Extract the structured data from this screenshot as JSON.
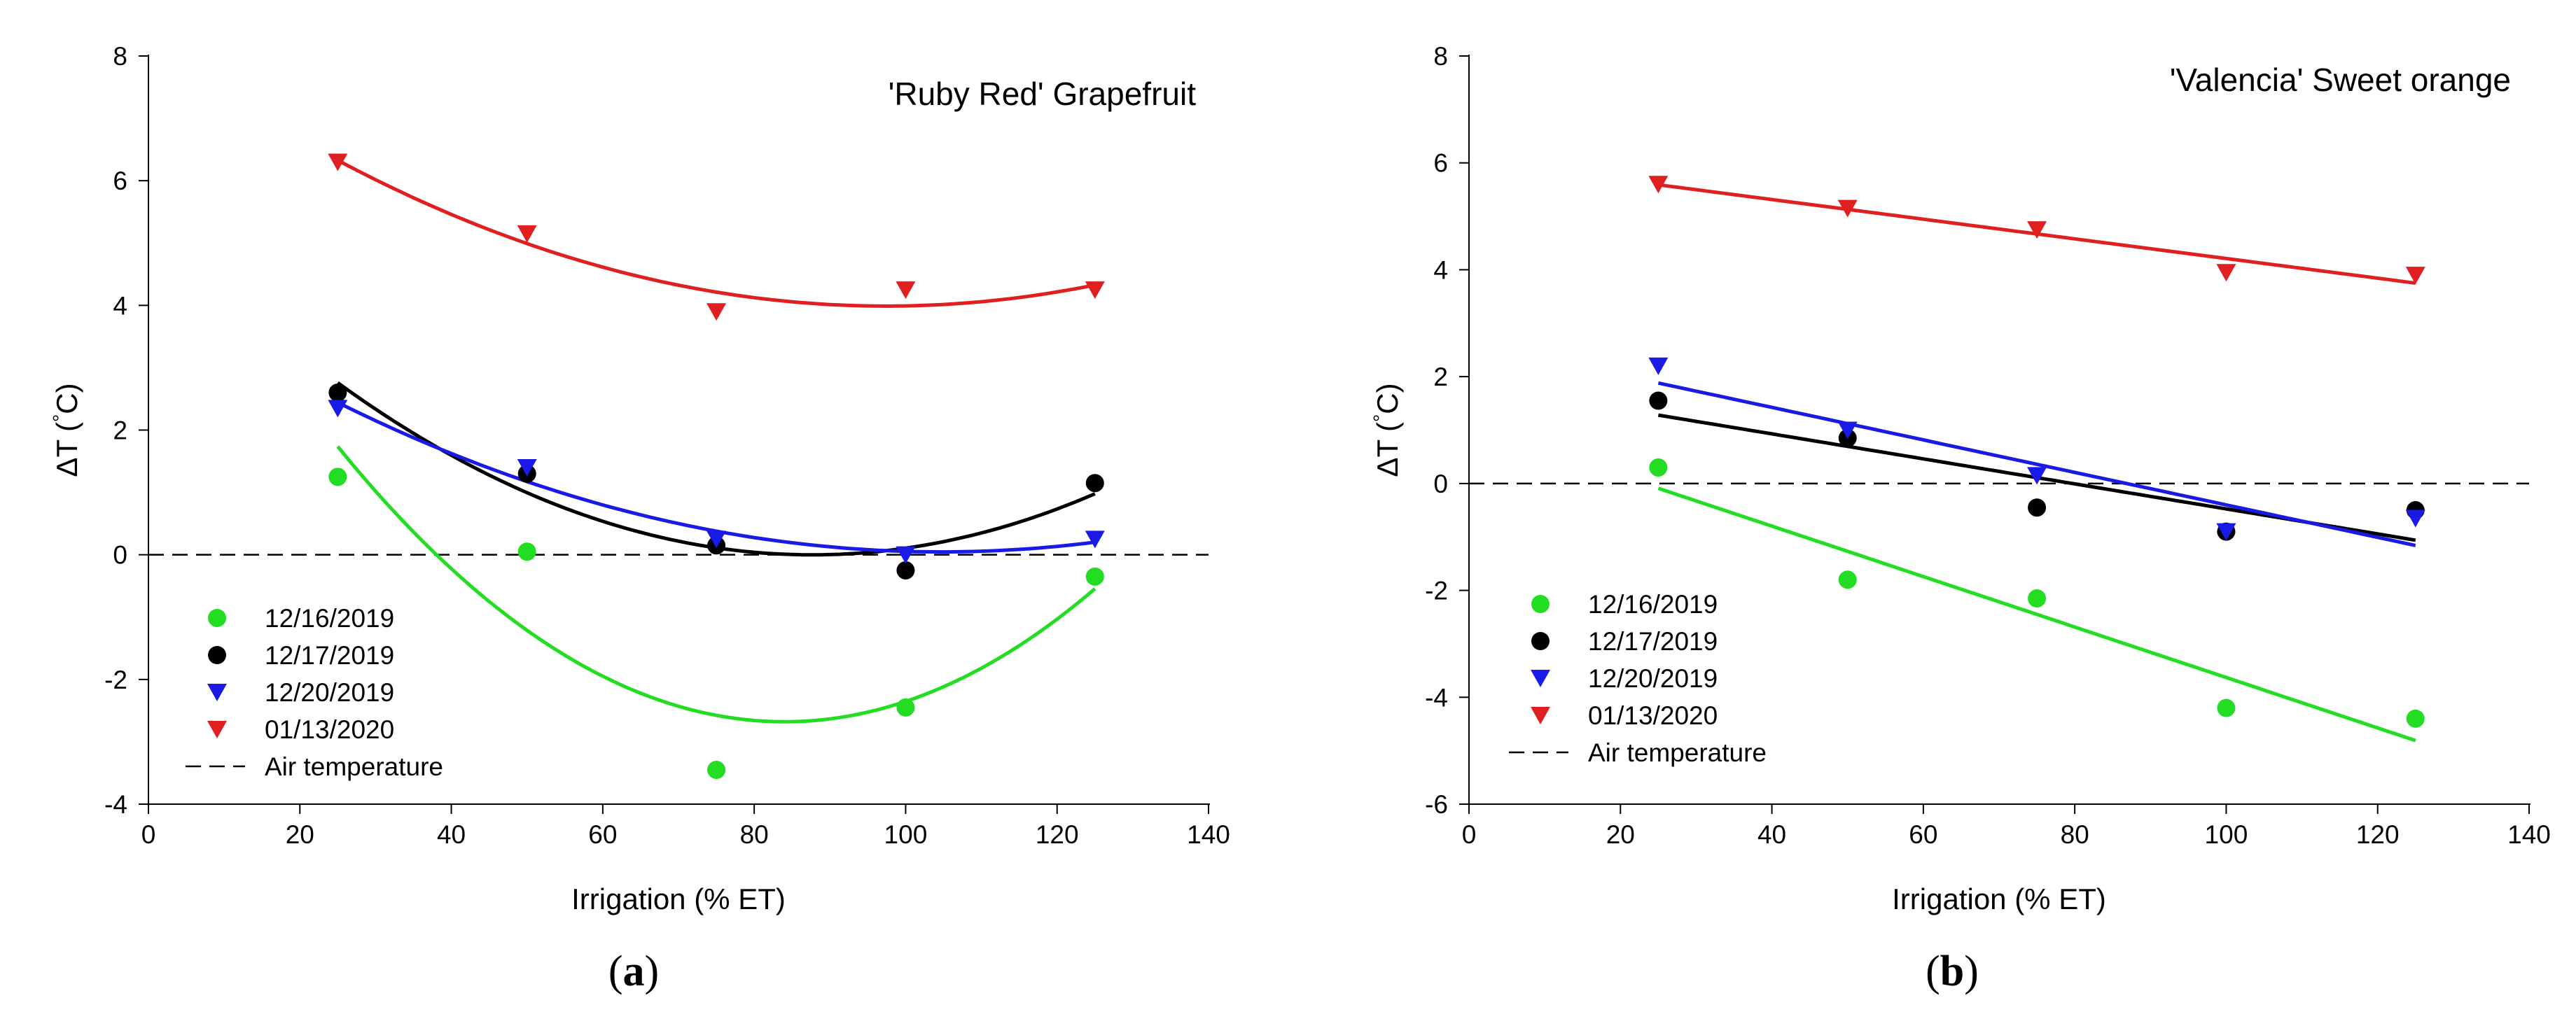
{
  "chart_data": [
    {
      "type": "scatter",
      "panel_label": "a",
      "title": "'Ruby Red' Grapefruit",
      "xlabel": "Irrigation (% ET)",
      "ylabel_main": "ΔT (",
      "ylabel_unit": "°C)",
      "xlim": [
        0,
        140
      ],
      "ylim": [
        -4,
        8
      ],
      "xticks": [
        0,
        20,
        40,
        60,
        80,
        100,
        120,
        140
      ],
      "yticks": [
        -4,
        -2,
        0,
        2,
        4,
        6,
        8
      ],
      "grid": false,
      "legend_position": "bottom-left",
      "series": [
        {
          "name": "12/16/2019",
          "color": "#22dd22",
          "marker": "circle",
          "x": [
            25,
            50,
            75,
            100,
            125
          ],
          "y": [
            1.25,
            0.05,
            -3.45,
            -2.45,
            -0.35
          ],
          "fit": "quadratic"
        },
        {
          "name": "12/17/2019",
          "color": "#000000",
          "marker": "circle",
          "x": [
            25,
            50,
            75,
            100,
            125
          ],
          "y": [
            2.6,
            1.3,
            0.15,
            -0.25,
            1.15
          ],
          "fit": "quadratic"
        },
        {
          "name": "12/20/2019",
          "color": "#1a1ae6",
          "marker": "triangle-down",
          "x": [
            25,
            50,
            75,
            100,
            125
          ],
          "y": [
            2.35,
            1.4,
            0.25,
            0.0,
            0.25
          ],
          "fit": "quadratic"
        },
        {
          "name": "01/13/2020",
          "color": "#e02020",
          "marker": "triangle-down",
          "x": [
            25,
            50,
            75,
            100,
            125
          ],
          "y": [
            6.3,
            5.15,
            3.9,
            4.25,
            4.25
          ],
          "fit": "quadratic"
        }
      ],
      "reference_line": {
        "name": "Air temperature",
        "y": 0,
        "style": "dashed"
      }
    },
    {
      "type": "scatter",
      "panel_label": "b",
      "title": "'Valencia' Sweet orange",
      "xlabel": "Irrigation (% ET)",
      "ylabel_main": "ΔT (",
      "ylabel_unit": "°C)",
      "xlim": [
        0,
        140
      ],
      "ylim": [
        -6,
        8
      ],
      "xticks": [
        0,
        20,
        40,
        60,
        80,
        100,
        120,
        140
      ],
      "yticks": [
        -6,
        -4,
        -2,
        0,
        2,
        4,
        6,
        8
      ],
      "grid": false,
      "legend_position": "bottom-left",
      "series": [
        {
          "name": "12/16/2019",
          "color": "#22dd22",
          "marker": "circle",
          "x": [
            25,
            50,
            75,
            100,
            125
          ],
          "y": [
            0.3,
            -1.8,
            -2.15,
            -4.2,
            -4.4
          ],
          "fit": "linear"
        },
        {
          "name": "12/17/2019",
          "color": "#000000",
          "marker": "circle",
          "x": [
            25,
            50,
            75,
            100,
            125
          ],
          "y": [
            1.55,
            0.85,
            -0.45,
            -0.9,
            -0.5
          ],
          "fit": "linear"
        },
        {
          "name": "12/20/2019",
          "color": "#1a1ae6",
          "marker": "triangle-down",
          "x": [
            25,
            50,
            75,
            100,
            125
          ],
          "y": [
            2.2,
            1.0,
            0.15,
            -0.9,
            -0.65
          ],
          "fit": "linear"
        },
        {
          "name": "01/13/2020",
          "color": "#e02020",
          "marker": "triangle-down",
          "x": [
            25,
            50,
            75,
            100,
            125
          ],
          "y": [
            5.6,
            5.15,
            4.75,
            3.95,
            3.9
          ],
          "fit": "linear"
        }
      ],
      "reference_line": {
        "name": "Air temperature",
        "y": 0,
        "style": "dashed"
      }
    }
  ]
}
